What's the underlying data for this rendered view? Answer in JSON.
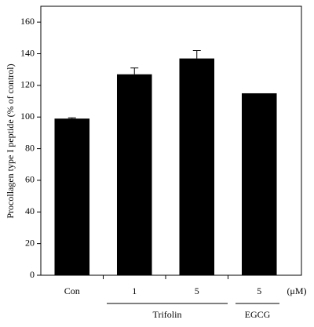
{
  "chart_data": {
    "type": "bar",
    "y_label": "Procollagen type I peptide (% of control)",
    "categories": [
      "Con",
      "1",
      "5",
      "5"
    ],
    "values": [
      99,
      127,
      137,
      115
    ],
    "errors": [
      0.5,
      4,
      5,
      0
    ],
    "color": "#000000",
    "ylim": [
      0,
      170
    ],
    "yticks": [
      0,
      20,
      40,
      60,
      80,
      100,
      120,
      140,
      160
    ],
    "group_labels": [
      "Trifolin",
      "EGCG"
    ],
    "unit_label": "(μM)"
  }
}
